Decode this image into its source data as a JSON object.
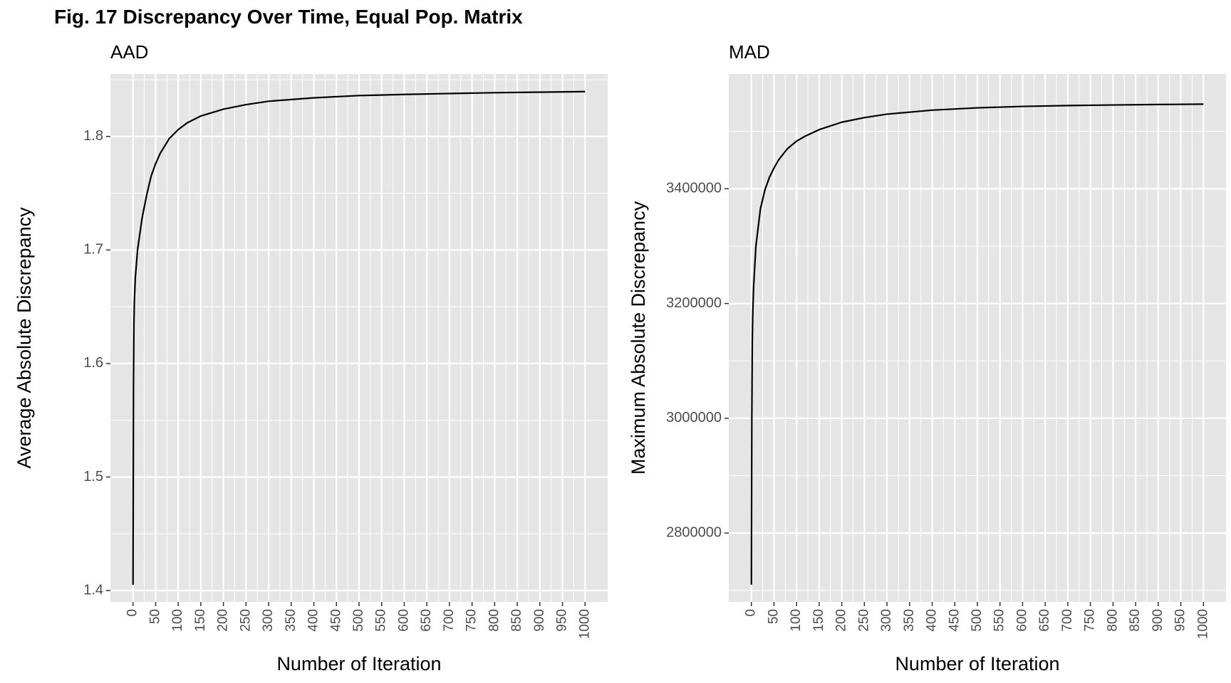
{
  "figure": {
    "title": "Fig. 17 Discrepancy Over Time, Equal Pop. Matrix"
  },
  "colors": {
    "panel_bg": "#e5e5e5",
    "grid": "#ffffff",
    "line": "#000000",
    "tick_text": "#4d4d4d"
  },
  "chart_data": [
    {
      "type": "line",
      "title": "AAD",
      "xlabel": "Number of Iteration",
      "ylabel": "Average Absolute Discrepancy",
      "xlim": [
        -50,
        1050
      ],
      "ylim": [
        1.39,
        1.855
      ],
      "xticks": [
        0,
        50,
        100,
        150,
        200,
        250,
        300,
        350,
        400,
        450,
        500,
        550,
        600,
        650,
        700,
        750,
        800,
        850,
        900,
        950,
        1000
      ],
      "yticks": [
        1.4,
        1.5,
        1.6,
        1.7,
        1.8
      ],
      "ytick_labels": [
        "1.4",
        "1.5",
        "1.6",
        "1.7",
        "1.8"
      ],
      "grid": true,
      "x": [
        0,
        1,
        2,
        3,
        5,
        10,
        20,
        30,
        40,
        50,
        60,
        80,
        100,
        120,
        150,
        200,
        250,
        300,
        400,
        500,
        600,
        700,
        800,
        900,
        1000
      ],
      "y": [
        1.405,
        1.58,
        1.635,
        1.655,
        1.675,
        1.7,
        1.728,
        1.748,
        1.765,
        1.776,
        1.785,
        1.798,
        1.806,
        1.812,
        1.818,
        1.824,
        1.828,
        1.831,
        1.834,
        1.836,
        1.837,
        1.8378,
        1.8385,
        1.839,
        1.8395
      ]
    },
    {
      "type": "line",
      "title": "MAD",
      "xlabel": "Number of Iteration",
      "ylabel": "Maximum Absolute Discrepancy",
      "xlim": [
        -50,
        1050
      ],
      "ylim": [
        2680000,
        3600000
      ],
      "xticks": [
        0,
        50,
        100,
        150,
        200,
        250,
        300,
        350,
        400,
        450,
        500,
        550,
        600,
        650,
        700,
        750,
        800,
        850,
        900,
        950,
        1000
      ],
      "yticks": [
        2800000,
        3000000,
        3200000,
        3400000
      ],
      "ytick_labels": [
        "2800000",
        "3000000",
        "3200000",
        "3400000"
      ],
      "grid": true,
      "x": [
        0,
        1,
        2,
        3,
        5,
        10,
        20,
        30,
        40,
        50,
        60,
        80,
        100,
        120,
        150,
        200,
        250,
        300,
        400,
        500,
        600,
        700,
        800,
        900,
        1000
      ],
      "y": [
        2710000,
        3000000,
        3130000,
        3180000,
        3230000,
        3300000,
        3365000,
        3398000,
        3420000,
        3436000,
        3450000,
        3470000,
        3483000,
        3492000,
        3503000,
        3516000,
        3524000,
        3530000,
        3537000,
        3541000,
        3543500,
        3545000,
        3546000,
        3546800,
        3547500
      ]
    }
  ]
}
